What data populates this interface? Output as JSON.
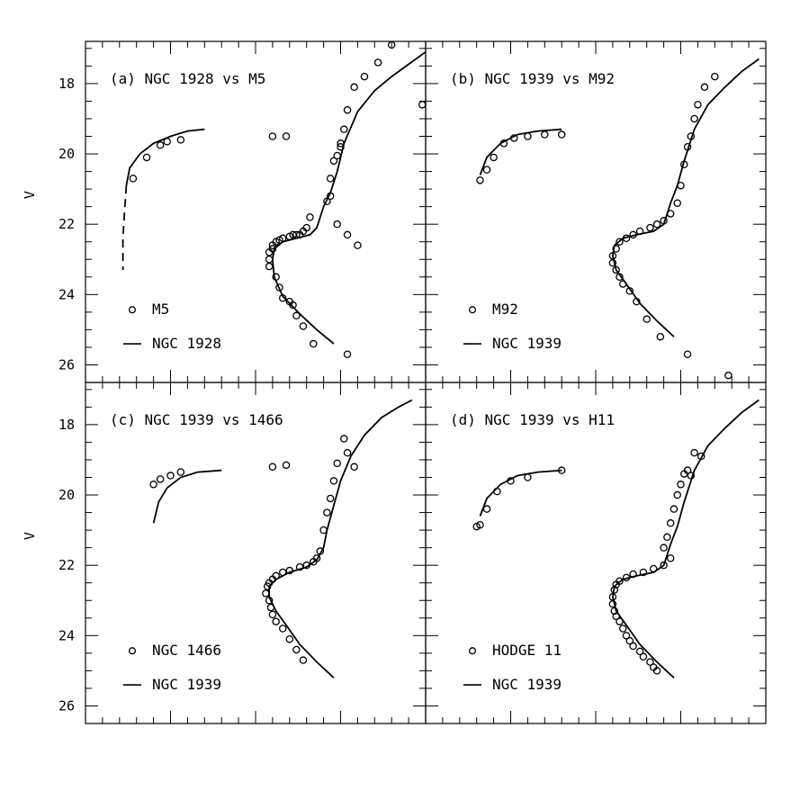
{
  "chart_data": [
    {
      "type": "scatter",
      "title": "(a) NGC 1928 vs M5",
      "ylabel": "V",
      "xlabel": "",
      "ylim": [
        26.5,
        16.8
      ],
      "xlim": [
        0,
        1
      ],
      "y_ticks": [
        "18",
        "20",
        "22",
        "24",
        "26"
      ],
      "legend": {
        "placement": "bottom-left",
        "entries": [
          "M5",
          "NGC 1928"
        ]
      },
      "series": [
        {
          "name": "M5",
          "kind": "points",
          "x": [
            0.14,
            0.18,
            0.22,
            0.24,
            0.28,
            0.55,
            0.59,
            0.54,
            0.54,
            0.54,
            0.55,
            0.55,
            0.56,
            0.57,
            0.58,
            0.6,
            0.61,
            0.62,
            0.63,
            0.64,
            0.65,
            0.66,
            0.56,
            0.57,
            0.58,
            0.6,
            0.61,
            0.62,
            0.64,
            0.67,
            0.72,
            0.72,
            0.73,
            0.74,
            0.75,
            0.75,
            0.76,
            0.77,
            0.79,
            0.82,
            0.86,
            0.9,
            0.99,
            0.77,
            0.71,
            0.74,
            0.77,
            0.8
          ],
          "y": [
            20.7,
            20.1,
            19.75,
            19.65,
            19.6,
            19.5,
            19.5,
            22.8,
            23.0,
            23.2,
            22.7,
            22.6,
            22.5,
            22.45,
            22.4,
            22.35,
            22.3,
            22.3,
            22.3,
            22.2,
            22.1,
            21.8,
            23.5,
            23.8,
            24.1,
            24.2,
            24.3,
            24.6,
            24.9,
            25.4,
            21.2,
            20.7,
            20.2,
            20.05,
            19.8,
            19.7,
            19.3,
            18.75,
            18.1,
            17.8,
            17.4,
            16.9,
            18.6,
            25.7,
            21.35,
            22.0,
            22.3,
            22.6
          ]
        },
        {
          "name": "NGC 1928",
          "kind": "line",
          "x": [
            0.12,
            0.13,
            0.16,
            0.2,
            0.25,
            0.3,
            0.35
          ],
          "y": [
            20.9,
            20.4,
            20.0,
            19.7,
            19.5,
            19.35,
            19.3
          ]
        },
        {
          "name": "NGC 1928",
          "kind": "dashed",
          "x": [
            0.12,
            0.115,
            0.11,
            0.11
          ],
          "y": [
            20.9,
            21.6,
            22.4,
            23.3
          ]
        },
        {
          "name": "NGC 1928",
          "kind": "line",
          "x": [
            0.73,
            0.68,
            0.63,
            0.58,
            0.555,
            0.55,
            0.555,
            0.58,
            0.62,
            0.66,
            0.68,
            0.69,
            0.7,
            0.72,
            0.74,
            0.76,
            0.8,
            0.85,
            0.9,
            0.95,
            1.0
          ],
          "y": [
            25.4,
            25.0,
            24.55,
            24.05,
            23.5,
            23.0,
            22.7,
            22.5,
            22.4,
            22.3,
            22.1,
            21.8,
            21.5,
            21.1,
            20.5,
            19.7,
            18.8,
            18.2,
            17.8,
            17.45,
            17.1
          ]
        }
      ]
    },
    {
      "type": "scatter",
      "title": "(b) NGC 1939 vs M92",
      "ylabel": "",
      "xlabel": "",
      "ylim": [
        26.5,
        16.8
      ],
      "xlim": [
        0,
        1
      ],
      "y_ticks": [],
      "legend": {
        "placement": "bottom-left",
        "entries": [
          "M92",
          "NGC 1939"
        ]
      },
      "series": [
        {
          "name": "M92",
          "kind": "points",
          "x": [
            0.16,
            0.18,
            0.2,
            0.23,
            0.26,
            0.3,
            0.35,
            0.4,
            0.55,
            0.56,
            0.57,
            0.59,
            0.61,
            0.63,
            0.66,
            0.68,
            0.7,
            0.55,
            0.56,
            0.57,
            0.58,
            0.6,
            0.62,
            0.65,
            0.69,
            0.72,
            0.74,
            0.75,
            0.76,
            0.77,
            0.78,
            0.79,
            0.8,
            0.82,
            0.85,
            0.77,
            0.89
          ],
          "y": [
            20.75,
            20.45,
            20.1,
            19.7,
            19.55,
            19.5,
            19.45,
            19.45,
            22.9,
            22.7,
            22.5,
            22.4,
            22.3,
            22.2,
            22.1,
            22.0,
            21.9,
            23.1,
            23.3,
            23.5,
            23.7,
            23.9,
            24.2,
            24.7,
            25.2,
            21.7,
            21.4,
            20.9,
            20.3,
            19.8,
            19.5,
            19.0,
            18.6,
            18.1,
            17.8,
            25.7,
            26.3
          ]
        },
        {
          "name": "NGC 1939",
          "kind": "line",
          "x": [
            0.16,
            0.18,
            0.22,
            0.27,
            0.33,
            0.4
          ],
          "y": [
            20.6,
            20.1,
            19.7,
            19.45,
            19.35,
            19.3
          ]
        },
        {
          "name": "NGC 1939",
          "kind": "line",
          "x": [
            0.73,
            0.68,
            0.63,
            0.59,
            0.56,
            0.55,
            0.555,
            0.58,
            0.62,
            0.67,
            0.7,
            0.71,
            0.72,
            0.74,
            0.76,
            0.79,
            0.83,
            0.88,
            0.93,
            0.98
          ],
          "y": [
            25.2,
            24.75,
            24.25,
            23.7,
            23.3,
            22.9,
            22.6,
            22.4,
            22.3,
            22.2,
            22.0,
            21.7,
            21.4,
            20.9,
            20.2,
            19.3,
            18.6,
            18.1,
            17.65,
            17.3
          ]
        }
      ]
    },
    {
      "type": "scatter",
      "title": "(c) NGC 1939 vs 1466",
      "ylabel": "V",
      "xlabel": "",
      "ylim": [
        26.5,
        16.8
      ],
      "xlim": [
        0,
        1
      ],
      "y_ticks": [
        "18",
        "20",
        "22",
        "24",
        "26"
      ],
      "legend": {
        "placement": "bottom-left",
        "entries": [
          "NGC 1466",
          "NGC 1939"
        ]
      },
      "series": [
        {
          "name": "NGC 1466",
          "kind": "points",
          "x": [
            0.2,
            0.22,
            0.25,
            0.28,
            0.55,
            0.59,
            0.53,
            0.535,
            0.54,
            0.55,
            0.56,
            0.58,
            0.6,
            0.63,
            0.65,
            0.67,
            0.68,
            0.54,
            0.545,
            0.55,
            0.56,
            0.58,
            0.6,
            0.62,
            0.64,
            0.69,
            0.7,
            0.71,
            0.72,
            0.73,
            0.74,
            0.76,
            0.77,
            0.79
          ],
          "y": [
            19.7,
            19.55,
            19.45,
            19.35,
            19.2,
            19.15,
            22.8,
            22.6,
            22.5,
            22.4,
            22.3,
            22.2,
            22.15,
            22.05,
            22.0,
            21.9,
            21.8,
            23.0,
            23.2,
            23.4,
            23.6,
            23.8,
            24.1,
            24.4,
            24.7,
            21.6,
            21.0,
            20.5,
            20.1,
            19.6,
            19.1,
            18.4,
            18.8,
            19.2
          ]
        },
        {
          "name": "NGC 1939",
          "kind": "line",
          "x": [
            0.2,
            0.215,
            0.24,
            0.28,
            0.33,
            0.4
          ],
          "y": [
            20.8,
            20.2,
            19.8,
            19.5,
            19.35,
            19.3
          ]
        },
        {
          "name": "NGC 1939",
          "kind": "line",
          "x": [
            0.73,
            0.68,
            0.63,
            0.59,
            0.56,
            0.54,
            0.54,
            0.56,
            0.6,
            0.65,
            0.68,
            0.7,
            0.71,
            0.73,
            0.75,
            0.78,
            0.82,
            0.87,
            0.92,
            0.96
          ],
          "y": [
            25.2,
            24.75,
            24.25,
            23.7,
            23.3,
            22.9,
            22.6,
            22.4,
            22.2,
            22.05,
            21.85,
            21.5,
            21.0,
            20.3,
            19.6,
            18.9,
            18.3,
            17.8,
            17.5,
            17.3
          ]
        }
      ]
    },
    {
      "type": "scatter",
      "title": "(d) NGC 1939 vs H11",
      "ylabel": "",
      "xlabel": "",
      "ylim": [
        26.5,
        16.8
      ],
      "xlim": [
        0,
        1
      ],
      "y_ticks": [],
      "legend": {
        "placement": "bottom-left",
        "entries": [
          "HODGE 11",
          "NGC 1939"
        ]
      },
      "series": [
        {
          "name": "HODGE 11",
          "kind": "points",
          "x": [
            0.15,
            0.16,
            0.18,
            0.21,
            0.25,
            0.3,
            0.4,
            0.55,
            0.555,
            0.56,
            0.57,
            0.59,
            0.61,
            0.64,
            0.67,
            0.7,
            0.72,
            0.55,
            0.555,
            0.56,
            0.57,
            0.58,
            0.59,
            0.6,
            0.61,
            0.63,
            0.64,
            0.66,
            0.67,
            0.68,
            0.7,
            0.71,
            0.72,
            0.73,
            0.74,
            0.75,
            0.76,
            0.77,
            0.78,
            0.79,
            0.81
          ],
          "y": [
            20.9,
            20.85,
            20.4,
            19.9,
            19.6,
            19.5,
            19.3,
            22.9,
            22.7,
            22.55,
            22.45,
            22.35,
            22.25,
            22.2,
            22.1,
            22.0,
            21.8,
            23.1,
            23.3,
            23.45,
            23.6,
            23.8,
            24.0,
            24.15,
            24.3,
            24.45,
            24.6,
            24.75,
            24.9,
            25.0,
            21.5,
            21.2,
            20.8,
            20.4,
            20.0,
            19.7,
            19.4,
            19.3,
            19.45,
            18.8,
            18.9
          ]
        },
        {
          "name": "NGC 1939",
          "kind": "line",
          "x": [
            0.16,
            0.18,
            0.22,
            0.27,
            0.33,
            0.4
          ],
          "y": [
            20.6,
            20.1,
            19.7,
            19.45,
            19.35,
            19.3
          ]
        },
        {
          "name": "NGC 1939",
          "kind": "line",
          "x": [
            0.73,
            0.68,
            0.63,
            0.59,
            0.56,
            0.55,
            0.555,
            0.58,
            0.62,
            0.67,
            0.7,
            0.71,
            0.72,
            0.74,
            0.76,
            0.79,
            0.83,
            0.88,
            0.93,
            0.98
          ],
          "y": [
            25.2,
            24.75,
            24.25,
            23.7,
            23.3,
            22.9,
            22.6,
            22.4,
            22.3,
            22.2,
            22.0,
            21.7,
            21.4,
            20.9,
            20.2,
            19.3,
            18.6,
            18.1,
            17.65,
            17.3
          ]
        }
      ]
    }
  ]
}
